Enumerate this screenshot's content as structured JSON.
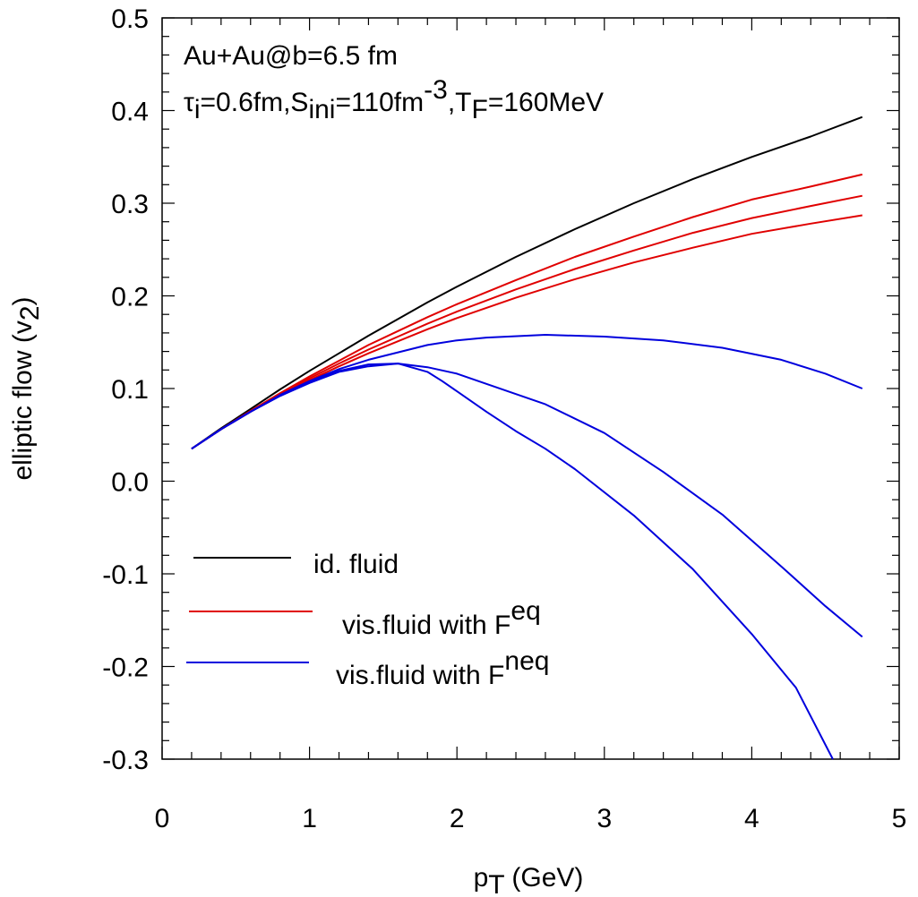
{
  "chart_data": {
    "type": "line",
    "xlabel_main": "p",
    "xlabel_sub": "T",
    "xlabel_unit": " (GeV)",
    "ylabel_main": "elliptic flow (v",
    "ylabel_sub": "2",
    "ylabel_close": ")",
    "xlim": [
      0,
      5
    ],
    "ylim": [
      -0.3,
      0.5
    ],
    "xticks": [
      0,
      1,
      2,
      3,
      4,
      5
    ],
    "xtick_labels": [
      "0",
      "1",
      "2",
      "3",
      "4",
      "5"
    ],
    "yticks": [
      -0.3,
      -0.2,
      -0.1,
      0.0,
      0.1,
      0.2,
      0.3,
      0.4,
      0.5
    ],
    "ytick_labels": [
      "-0.3",
      "-0.2",
      "-0.1",
      "0.0",
      "0.1",
      "0.2",
      "0.3",
      "0.4",
      "0.5"
    ],
    "grid": false,
    "legend_position": "bottom-left",
    "annotations": {
      "line1": "Au+Au@b=6.5 fm",
      "line2": {
        "tau": "τ",
        "tau_sub": "i",
        "part1": "=0.6fm,S",
        "s_sub": "ini",
        "part2": "=110fm",
        "exp": "-3",
        "part3": ",T",
        "t_sub": "F",
        "part4": "=160MeV"
      }
    },
    "legend": [
      {
        "main": "id. fluid",
        "sup": "",
        "color": "#000000"
      },
      {
        "main": "vis.fluid with F",
        "sup": "eq",
        "color": "#e00000"
      },
      {
        "main": "vis.fluid with F",
        "sup": "neq",
        "color": "#0000dd"
      }
    ],
    "series": [
      {
        "group": "id. fluid",
        "color": "#000000",
        "x": [
          0.2,
          0.4,
          0.6,
          0.8,
          1.0,
          1.2,
          1.4,
          1.6,
          1.8,
          2.0,
          2.4,
          2.8,
          3.2,
          3.6,
          4.0,
          4.4,
          4.75
        ],
        "y": [
          0.035,
          0.057,
          0.078,
          0.099,
          0.119,
          0.138,
          0.157,
          0.175,
          0.193,
          0.21,
          0.242,
          0.272,
          0.3,
          0.326,
          0.35,
          0.372,
          0.393
        ]
      },
      {
        "group": "vis.fluid with F^eq",
        "color": "#e00000",
        "x": [
          0.2,
          0.4,
          0.6,
          0.8,
          1.0,
          1.2,
          1.4,
          1.6,
          1.8,
          2.0,
          2.4,
          2.8,
          3.2,
          3.6,
          4.0,
          4.4,
          4.75
        ],
        "y": [
          0.035,
          0.056,
          0.076,
          0.095,
          0.113,
          0.13,
          0.147,
          0.162,
          0.177,
          0.191,
          0.217,
          0.242,
          0.264,
          0.285,
          0.304,
          0.318,
          0.331
        ]
      },
      {
        "group": "vis.fluid with F^eq",
        "color": "#e00000",
        "x": [
          0.2,
          0.4,
          0.6,
          0.8,
          1.0,
          1.2,
          1.4,
          1.6,
          1.8,
          2.0,
          2.4,
          2.8,
          3.2,
          3.6,
          4.0,
          4.4,
          4.75
        ],
        "y": [
          0.035,
          0.056,
          0.075,
          0.094,
          0.111,
          0.127,
          0.142,
          0.156,
          0.17,
          0.183,
          0.207,
          0.229,
          0.249,
          0.268,
          0.284,
          0.297,
          0.308
        ]
      },
      {
        "group": "vis.fluid with F^eq",
        "color": "#e00000",
        "x": [
          0.2,
          0.4,
          0.6,
          0.8,
          1.0,
          1.2,
          1.4,
          1.6,
          1.8,
          2.0,
          2.4,
          2.8,
          3.2,
          3.6,
          4.0,
          4.4,
          4.75
        ],
        "y": [
          0.035,
          0.056,
          0.075,
          0.093,
          0.109,
          0.124,
          0.138,
          0.151,
          0.164,
          0.176,
          0.198,
          0.218,
          0.236,
          0.252,
          0.267,
          0.278,
          0.287
        ]
      },
      {
        "group": "vis.fluid with F^neq",
        "color": "#0000dd",
        "x": [
          0.2,
          0.4,
          0.6,
          0.8,
          1.0,
          1.2,
          1.4,
          1.6,
          1.8,
          2.0,
          2.2,
          2.6,
          3.0,
          3.4,
          3.8,
          4.2,
          4.5,
          4.75
        ],
        "y": [
          0.035,
          0.056,
          0.075,
          0.093,
          0.108,
          0.121,
          0.131,
          0.139,
          0.147,
          0.152,
          0.155,
          0.158,
          0.156,
          0.152,
          0.144,
          0.131,
          0.116,
          0.1
        ]
      },
      {
        "group": "vis.fluid with F^neq",
        "color": "#0000dd",
        "x": [
          0.2,
          0.4,
          0.6,
          0.8,
          1.0,
          1.2,
          1.4,
          1.6,
          1.8,
          2.0,
          2.2,
          2.6,
          3.0,
          3.4,
          3.8,
          4.2,
          4.5,
          4.75
        ],
        "y": [
          0.035,
          0.056,
          0.075,
          0.092,
          0.106,
          0.118,
          0.124,
          0.127,
          0.123,
          0.116,
          0.105,
          0.083,
          0.052,
          0.01,
          -0.036,
          -0.092,
          -0.135,
          -0.168
        ]
      },
      {
        "group": "vis.fluid with F^neq",
        "color": "#0000dd",
        "x": [
          0.2,
          0.4,
          0.6,
          0.8,
          1.0,
          1.2,
          1.4,
          1.6,
          1.8,
          1.9,
          2.0,
          2.2,
          2.4,
          2.6,
          2.8,
          3.2,
          3.6,
          4.0,
          4.3,
          4.55
        ],
        "y": [
          0.035,
          0.056,
          0.075,
          0.092,
          0.107,
          0.119,
          0.126,
          0.127,
          0.118,
          0.108,
          0.097,
          0.075,
          0.054,
          0.035,
          0.013,
          -0.037,
          -0.095,
          -0.165,
          -0.223,
          -0.3
        ]
      }
    ]
  }
}
